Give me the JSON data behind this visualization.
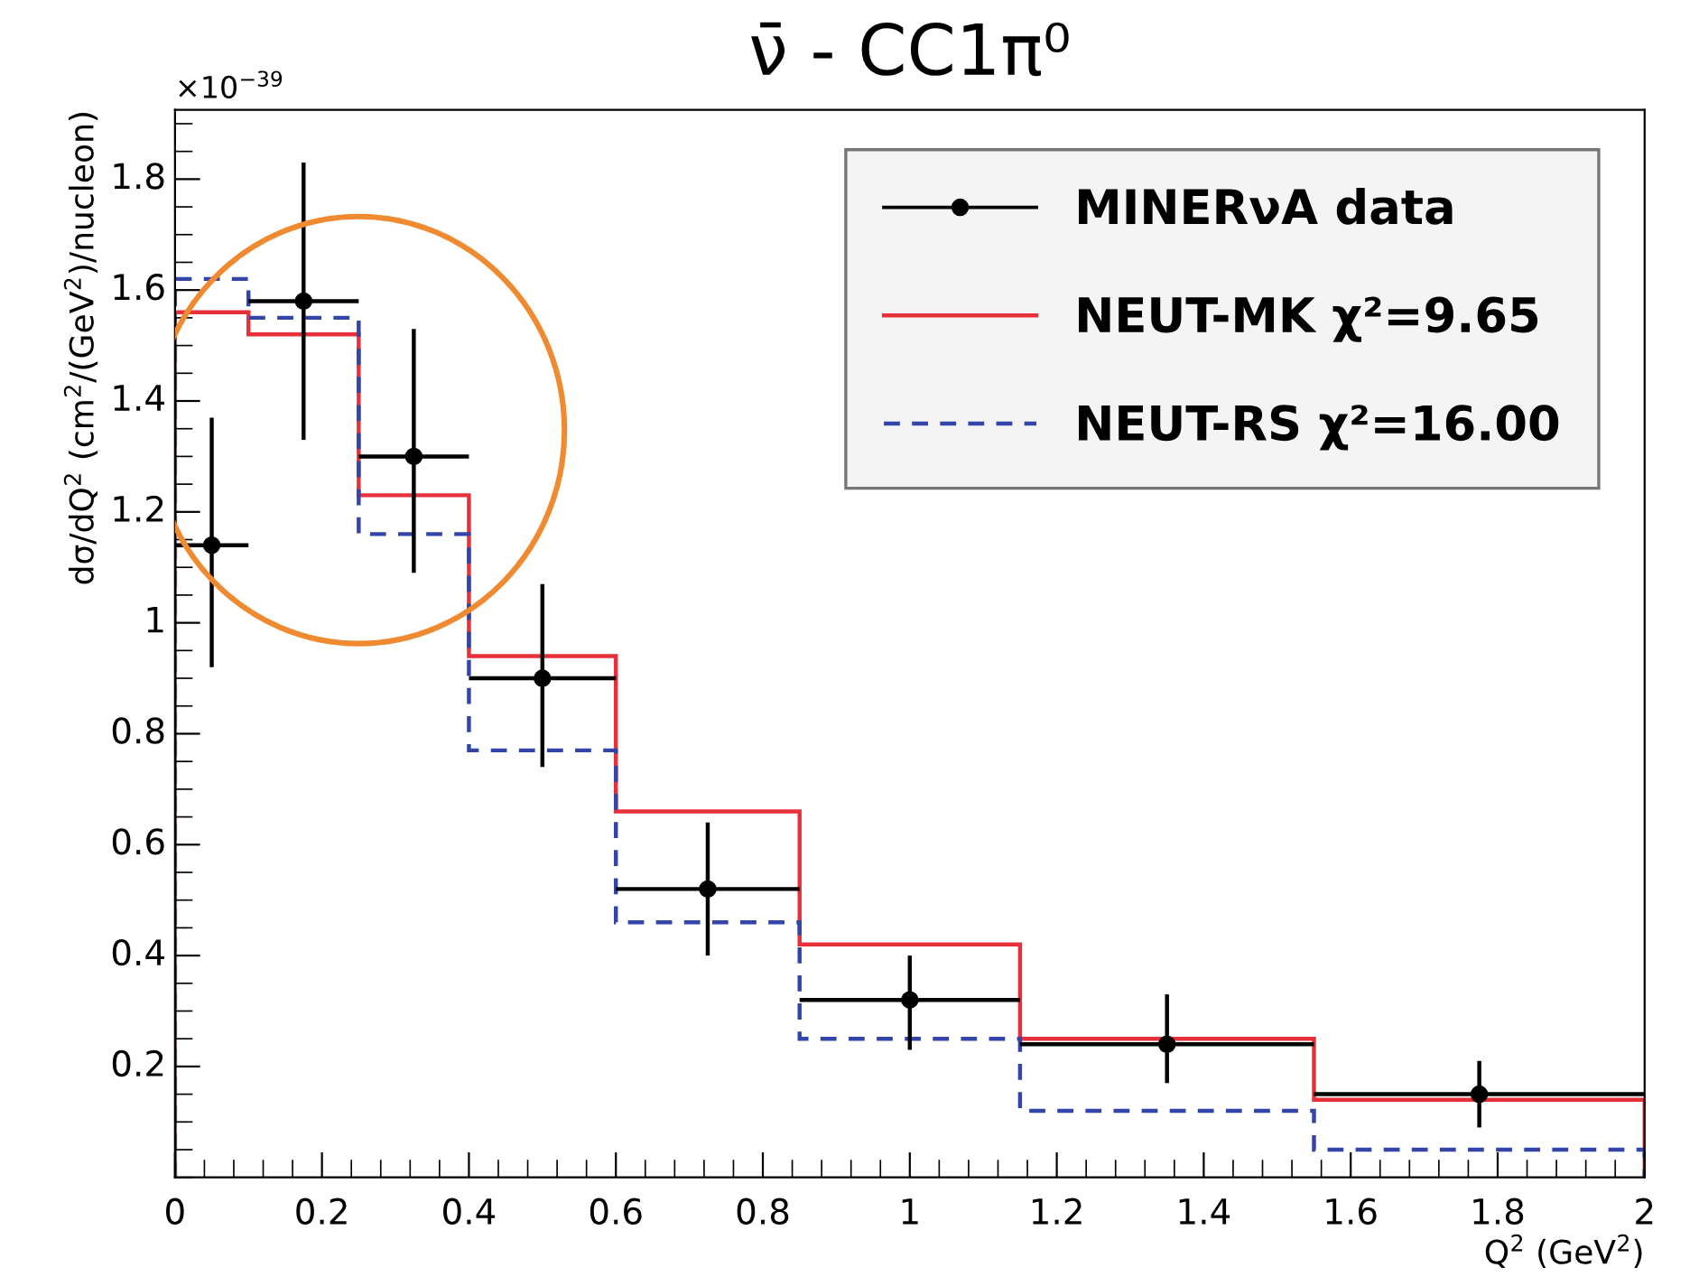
{
  "chart_data": {
    "type": "histogram",
    "title": "ν̄ - CC1π⁰",
    "xlabel": "Q$^{2}$ (GeV$^{2}$)",
    "ylabel": "dσ/dQ$^{2}$ (cm$^{2}$/(GeV$^{2}$)/nucleon)",
    "annotations": [
      "×10$^{−39}$"
    ],
    "bins": [
      0,
      0.1,
      0.25,
      0.4,
      0.6,
      0.85,
      1.15,
      1.55,
      2.0
    ],
    "series": [
      {
        "name": "MINERνA data",
        "type": "scatter",
        "color": "#000000",
        "marker": "circle",
        "x": [
          0.05,
          0.175,
          0.325,
          0.5,
          0.725,
          1.0,
          1.35,
          1.775
        ],
        "values": [
          1.14,
          1.58,
          1.3,
          0.9,
          0.52,
          0.32,
          0.24,
          0.15
        ],
        "errors": [
          [
            0.92,
            1.37
          ],
          [
            1.33,
            1.83
          ],
          [
            1.09,
            1.53
          ],
          [
            0.74,
            1.07
          ],
          [
            0.4,
            0.64
          ],
          [
            0.23,
            0.4
          ],
          [
            0.17,
            0.33
          ],
          [
            0.09,
            0.21
          ]
        ],
        "xerrors": [
          0.05,
          0.075,
          0.075,
          0.1,
          0.125,
          0.15,
          0.2,
          0.225
        ]
      },
      {
        "name": "NEUT-MK χ²=9.65",
        "color": "#e8303a",
        "line_style": "solid",
        "values": [
          1.56,
          1.52,
          1.23,
          0.94,
          0.66,
          0.42,
          0.25,
          0.14
        ]
      },
      {
        "name": "NEUT-RS χ²=16.00",
        "color": "#3344aa",
        "line_style": "dashed",
        "values": [
          1.62,
          1.55,
          1.16,
          0.77,
          0.46,
          0.25,
          0.12,
          0.05
        ]
      }
    ],
    "xlim": [
      0,
      2
    ],
    "ylim": [
      0,
      1.925
    ],
    "xticks": [
      0,
      0.2,
      0.4,
      0.6,
      0.8,
      1,
      1.2,
      1.4,
      1.6,
      1.8,
      2
    ],
    "yticks": [
      0.2,
      0.4,
      0.6,
      0.8,
      1,
      1.2,
      1.4,
      1.6,
      1.8
    ],
    "legend": "top right",
    "grid": false
  }
}
